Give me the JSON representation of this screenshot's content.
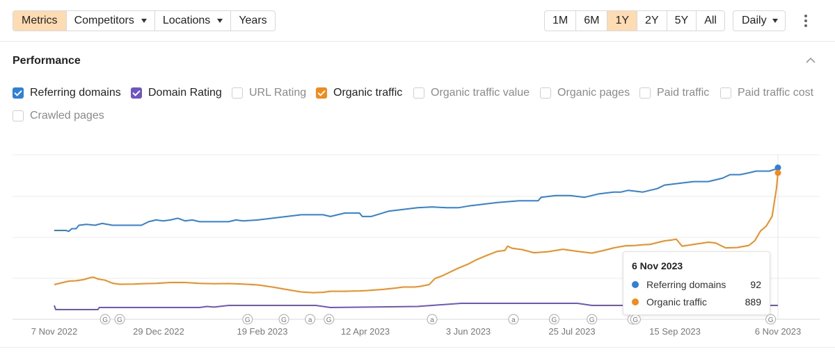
{
  "toolbar": {
    "left_tabs": [
      {
        "label": "Metrics",
        "active": true,
        "dropdown": false
      },
      {
        "label": "Competitors",
        "active": false,
        "dropdown": true
      },
      {
        "label": "Locations",
        "active": false,
        "dropdown": true
      },
      {
        "label": "Years",
        "active": false,
        "dropdown": false
      }
    ],
    "ranges": [
      {
        "label": "1M",
        "active": false
      },
      {
        "label": "6M",
        "active": false
      },
      {
        "label": "1Y",
        "active": true
      },
      {
        "label": "2Y",
        "active": false
      },
      {
        "label": "5Y",
        "active": false
      },
      {
        "label": "All",
        "active": false
      }
    ],
    "interval": "Daily",
    "more_icon": "vertical-ellipsis-icon"
  },
  "panel": {
    "title": "Performance",
    "collapse_icon": "chevron-up-icon"
  },
  "metrics": [
    {
      "label": "Referring domains",
      "checked": true,
      "color": "#2f80d8"
    },
    {
      "label": "Domain Rating",
      "checked": true,
      "color": "#6e55c4"
    },
    {
      "label": "URL Rating",
      "checked": false
    },
    {
      "label": "Organic traffic",
      "checked": true,
      "color": "#f08b1c"
    },
    {
      "label": "Organic traffic value",
      "checked": false
    },
    {
      "label": "Organic pages",
      "checked": false
    },
    {
      "label": "Paid traffic",
      "checked": false
    },
    {
      "label": "Paid traffic cost",
      "checked": false
    },
    {
      "label": "Crawled pages",
      "checked": false
    }
  ],
  "chart_data": {
    "type": "line",
    "x_ticks": [
      "7 Nov 2022",
      "29 Dec 2022",
      "19 Feb 2023",
      "12 Apr 2023",
      "3 Jun 2023",
      "25 Jul 2023",
      "15 Sep 2023",
      "6 Nov 2023"
    ],
    "grid": true,
    "y_axis_labels": false,
    "series": [
      {
        "name": "Referring domains",
        "color": "#2f80d8",
        "points": [
          [
            0,
            56
          ],
          [
            8,
            56
          ],
          [
            10,
            55.5
          ],
          [
            12,
            57
          ],
          [
            15,
            57
          ],
          [
            17,
            59
          ],
          [
            22,
            59.5
          ],
          [
            28,
            59
          ],
          [
            33,
            60
          ],
          [
            40,
            59
          ],
          [
            50,
            59
          ],
          [
            60,
            59
          ],
          [
            65,
            61
          ],
          [
            70,
            62
          ],
          [
            75,
            61.5
          ],
          [
            80,
            62
          ],
          [
            85,
            63
          ],
          [
            90,
            61.5
          ],
          [
            95,
            62
          ],
          [
            100,
            61
          ],
          [
            110,
            61
          ],
          [
            120,
            61
          ],
          [
            125,
            62
          ],
          [
            130,
            61.5
          ],
          [
            140,
            62
          ],
          [
            150,
            63
          ],
          [
            160,
            64
          ],
          [
            170,
            65
          ],
          [
            178,
            65
          ],
          [
            185,
            65
          ],
          [
            190,
            64
          ],
          [
            195,
            65
          ],
          [
            200,
            66
          ],
          [
            210,
            66
          ],
          [
            212,
            64
          ],
          [
            218,
            64
          ],
          [
            222,
            65
          ],
          [
            230,
            67
          ],
          [
            240,
            68
          ],
          [
            250,
            69
          ],
          [
            260,
            69.5
          ],
          [
            270,
            69
          ],
          [
            278,
            69
          ],
          [
            285,
            70
          ],
          [
            295,
            71
          ],
          [
            305,
            72
          ],
          [
            320,
            73
          ],
          [
            333,
            73
          ],
          [
            335,
            75
          ],
          [
            345,
            76
          ],
          [
            355,
            76
          ],
          [
            365,
            75
          ],
          [
            375,
            77
          ],
          [
            385,
            78
          ],
          [
            390,
            78
          ],
          [
            395,
            79
          ],
          [
            405,
            78
          ],
          [
            415,
            80
          ],
          [
            420,
            82
          ],
          [
            430,
            83
          ],
          [
            440,
            84
          ],
          [
            450,
            84
          ],
          [
            455,
            85
          ],
          [
            460,
            86
          ],
          [
            465,
            88
          ],
          [
            472,
            88
          ],
          [
            478,
            89
          ],
          [
            483,
            90
          ],
          [
            488,
            90
          ],
          [
            492,
            90
          ],
          [
            496,
            91
          ],
          [
            498,
            92
          ]
        ]
      },
      {
        "name": "Organic traffic",
        "color": "#f08b1c",
        "points": [
          [
            0,
            250
          ],
          [
            5,
            260
          ],
          [
            10,
            270
          ],
          [
            15,
            272
          ],
          [
            20,
            278
          ],
          [
            25,
            290
          ],
          [
            27,
            292
          ],
          [
            30,
            282
          ],
          [
            35,
            275
          ],
          [
            40,
            258
          ],
          [
            45,
            252
          ],
          [
            55,
            253
          ],
          [
            60,
            255
          ],
          [
            70,
            257
          ],
          [
            80,
            262
          ],
          [
            90,
            262
          ],
          [
            100,
            257
          ],
          [
            110,
            255
          ],
          [
            120,
            256
          ],
          [
            130,
            253
          ],
          [
            140,
            248
          ],
          [
            150,
            236
          ],
          [
            160,
            222
          ],
          [
            170,
            208
          ],
          [
            178,
            204
          ],
          [
            185,
            206
          ],
          [
            190,
            212
          ],
          [
            200,
            212
          ],
          [
            210,
            214
          ],
          [
            215,
            216
          ],
          [
            225,
            222
          ],
          [
            235,
            230
          ],
          [
            240,
            236
          ],
          [
            248,
            236
          ],
          [
            252,
            240
          ],
          [
            258,
            250
          ],
          [
            262,
            285
          ],
          [
            267,
            300
          ],
          [
            272,
            320
          ],
          [
            278,
            344
          ],
          [
            285,
            368
          ],
          [
            290,
            390
          ],
          [
            298,
            418
          ],
          [
            305,
            440
          ],
          [
            310,
            445
          ],
          [
            312,
            470
          ],
          [
            315,
            458
          ],
          [
            322,
            450
          ],
          [
            330,
            432
          ],
          [
            340,
            438
          ],
          [
            350,
            452
          ],
          [
            360,
            440
          ],
          [
            370,
            430
          ],
          [
            378,
            445
          ],
          [
            385,
            460
          ],
          [
            393,
            472
          ],
          [
            400,
            474
          ],
          [
            405,
            478
          ],
          [
            410,
            480
          ],
          [
            415,
            490
          ],
          [
            420,
            500
          ],
          [
            425,
            505
          ],
          [
            428,
            510
          ],
          [
            432,
            470
          ],
          [
            440,
            480
          ],
          [
            450,
            492
          ],
          [
            455,
            488
          ],
          [
            462,
            460
          ],
          [
            470,
            462
          ],
          [
            474,
            468
          ],
          [
            478,
            474
          ],
          [
            482,
            500
          ],
          [
            486,
            556
          ],
          [
            490,
            585
          ],
          [
            494,
            640
          ],
          [
            497,
            800
          ],
          [
            498,
            889
          ]
        ]
      },
      {
        "name": "Domain Rating",
        "color": "#6e55c4",
        "points": [
          [
            0,
            13
          ],
          [
            1,
            11
          ],
          [
            30,
            11
          ],
          [
            31,
            12
          ],
          [
            100,
            12
          ],
          [
            105,
            12.5
          ],
          [
            110,
            12.2
          ],
          [
            120,
            13
          ],
          [
            180,
            13
          ],
          [
            190,
            12
          ],
          [
            250,
            12.5
          ],
          [
            280,
            14
          ],
          [
            360,
            14
          ],
          [
            370,
            13
          ],
          [
            498,
            13
          ]
        ]
      }
    ],
    "tooltip": {
      "date": "6 Nov 2023",
      "items": [
        {
          "name": "Referring domains",
          "value": "92",
          "color": "#2f80d8"
        },
        {
          "name": "Organic traffic",
          "value": "889",
          "color": "#f08b1c"
        }
      ]
    },
    "annotations": [
      {
        "day": 35,
        "label": "G"
      },
      {
        "day": 45,
        "label": "G"
      },
      {
        "day": 133,
        "label": "G"
      },
      {
        "day": 158,
        "label": "G"
      },
      {
        "day": 176,
        "label": "a"
      },
      {
        "day": 189,
        "label": "G"
      },
      {
        "day": 260,
        "label": "a"
      },
      {
        "day": 316,
        "label": "a"
      },
      {
        "day": 344,
        "label": "G"
      },
      {
        "day": 370,
        "label": "G"
      },
      {
        "day": 398,
        "label": "G"
      },
      {
        "day": 400,
        "label": "G"
      },
      {
        "day": 493,
        "label": "G"
      }
    ]
  }
}
